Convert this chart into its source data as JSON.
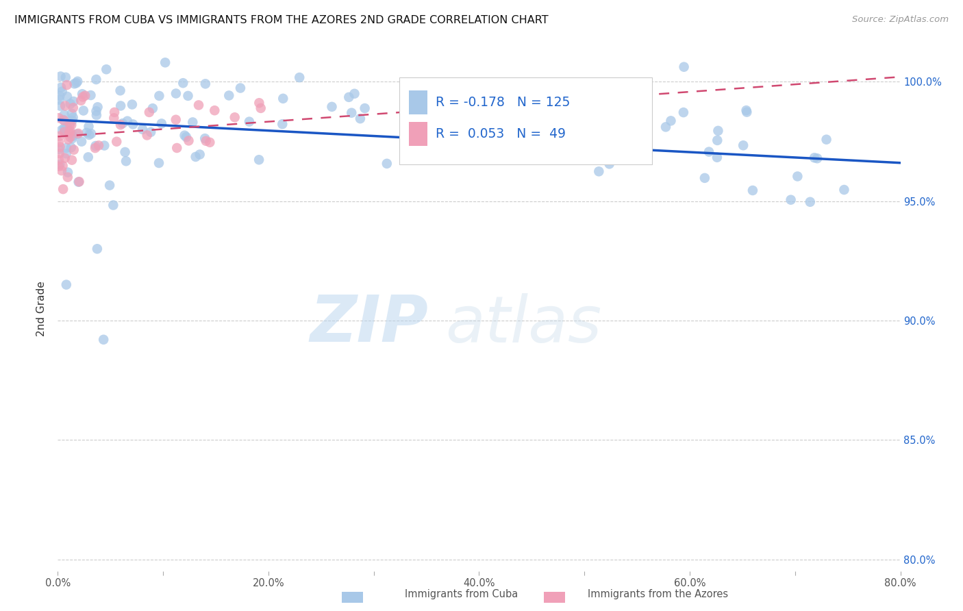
{
  "title": "IMMIGRANTS FROM CUBA VS IMMIGRANTS FROM THE AZORES 2ND GRADE CORRELATION CHART",
  "source": "Source: ZipAtlas.com",
  "ylabel": "2nd Grade",
  "xlim": [
    0.0,
    0.8
  ],
  "ylim": [
    0.795,
    1.015
  ],
  "xtick_labels": [
    "0.0%",
    "",
    "20.0%",
    "",
    "40.0%",
    "",
    "60.0%",
    "",
    "80.0%"
  ],
  "xtick_vals": [
    0.0,
    0.1,
    0.2,
    0.3,
    0.4,
    0.5,
    0.6,
    0.7,
    0.8
  ],
  "ytick_labels": [
    "80.0%",
    "85.0%",
    "90.0%",
    "95.0%",
    "100.0%"
  ],
  "ytick_vals": [
    0.8,
    0.85,
    0.9,
    0.95,
    1.0
  ],
  "color_cuba": "#a8c8e8",
  "color_azores": "#f0a0b8",
  "line_color_cuba": "#1a56c4",
  "line_color_azores": "#d04870",
  "background": "#ffffff",
  "watermark_zip": "ZIP",
  "watermark_atlas": "atlas",
  "cuba_line_y0": 0.984,
  "cuba_line_y1": 0.966,
  "azores_line_y0": 0.977,
  "azores_line_y1": 1.002,
  "legend_r1": "R = -0.178",
  "legend_n1": "N = 125",
  "legend_r2": "R =  0.053",
  "legend_n2": "N =  49"
}
